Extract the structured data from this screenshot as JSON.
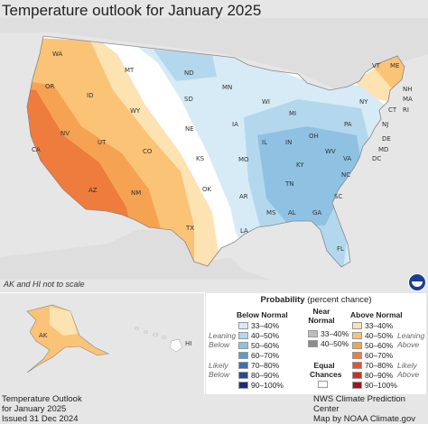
{
  "title": "Temperature outlook for January 2025",
  "note": "AK and HI not to scale",
  "footer_left": [
    "Temperature Outlook",
    "for January 2025",
    "Issued 31 Dec 2024"
  ],
  "footer_right": [
    "NWS Climate Prediction Center",
    "Map by NOAA Climate.gov"
  ],
  "legend": {
    "title_bold": "Probability",
    "title_rest": " (percent chance)",
    "below_head": "Below Normal",
    "near_head": [
      "Near",
      "Normal"
    ],
    "above_head": "Above Normal",
    "below_items": [
      "33–40%",
      "40–50%",
      "50–60%",
      "60–70%",
      "70–80%",
      "80–90%",
      "90–100%"
    ],
    "near_items": [
      "33–40%",
      "40–50%"
    ],
    "above_items": [
      "33–40%",
      "40–50%",
      "50–60%",
      "60–70%",
      "70–80%",
      "80–90%",
      "90–100%"
    ],
    "equal_label": [
      "Equal",
      "Chances"
    ],
    "leaning_below": [
      "Leaning",
      "Below"
    ],
    "likely_below": [
      "Likely",
      "Below"
    ],
    "leaning_above": [
      "Leaning",
      "Above"
    ],
    "likely_above": [
      "Likely",
      "Above"
    ]
  },
  "colors": {
    "below": [
      "#d6ebf6",
      "#b3d8ee",
      "#8fc1e3",
      "#5b9ad0",
      "#3b6eb3",
      "#28479b",
      "#1c2a7c"
    ],
    "near": [
      "#bdbdbd",
      "#8c8c8c"
    ],
    "above": [
      "#fde2b2",
      "#fbc376",
      "#f6a253",
      "#ee7c3d",
      "#e3552e",
      "#cf2e22",
      "#a3131a"
    ],
    "equal": "#ffffff"
  },
  "states": [
    "WA",
    "OR",
    "CA",
    "NV",
    "ID",
    "MT",
    "WY",
    "UT",
    "AZ",
    "CO",
    "NM",
    "ND",
    "SD",
    "NE",
    "KS",
    "OK",
    "TX",
    "MN",
    "IA",
    "MO",
    "AR",
    "LA",
    "WI",
    "IL",
    "MI",
    "IN",
    "OH",
    "KY",
    "TN",
    "MS",
    "AL",
    "GA",
    "FL",
    "SC",
    "NC",
    "VA",
    "WV",
    "PA",
    "NY",
    "VT",
    "ME",
    "NH",
    "MA",
    "CT",
    "RI",
    "NJ",
    "DE",
    "MD",
    "DC",
    "AK",
    "HI"
  ]
}
